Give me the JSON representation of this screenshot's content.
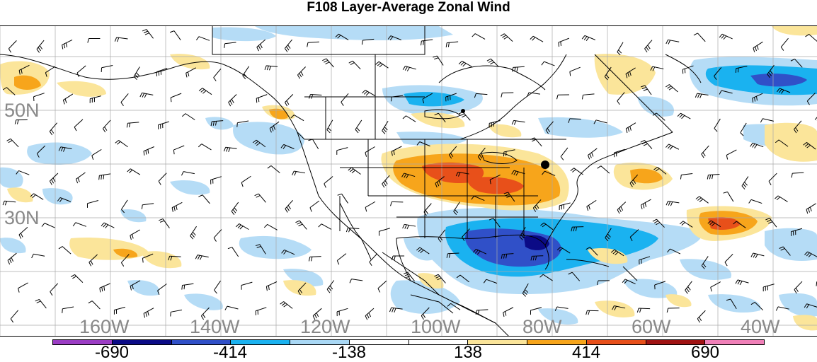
{
  "title": "F108 Layer-Average Zonal Wind",
  "lat_labels": [
    "50N",
    "30N"
  ],
  "lon_labels": [
    "160W",
    "140W",
    "120W",
    "100W",
    "80W",
    "60W",
    "40W"
  ],
  "colorbar": {
    "colors": [
      "#9b3dc4",
      "#0b0b86",
      "#3050c8",
      "#1ab2f0",
      "#a9d8f5",
      "#ffffff",
      "#ffffff",
      "#fbe59a",
      "#f7a51b",
      "#e8501a",
      "#a01313",
      "#f080b8"
    ],
    "labels": [
      "-690",
      "-414",
      "-138",
      "138",
      "414",
      "690"
    ]
  },
  "map": {
    "grid": "on",
    "projection": "lat-lon, North America / Atlantic",
    "anomaly_colors": {
      "light_blue": "#b5dcf6",
      "mid_blue": "#1ab2f0",
      "royal_blue": "#3050c8",
      "dark_blue": "#0b0b86",
      "light_yellow": "#fbe59a",
      "orange": "#f7a51b",
      "red_orange": "#e8501a"
    },
    "wind_barbs": "on"
  }
}
